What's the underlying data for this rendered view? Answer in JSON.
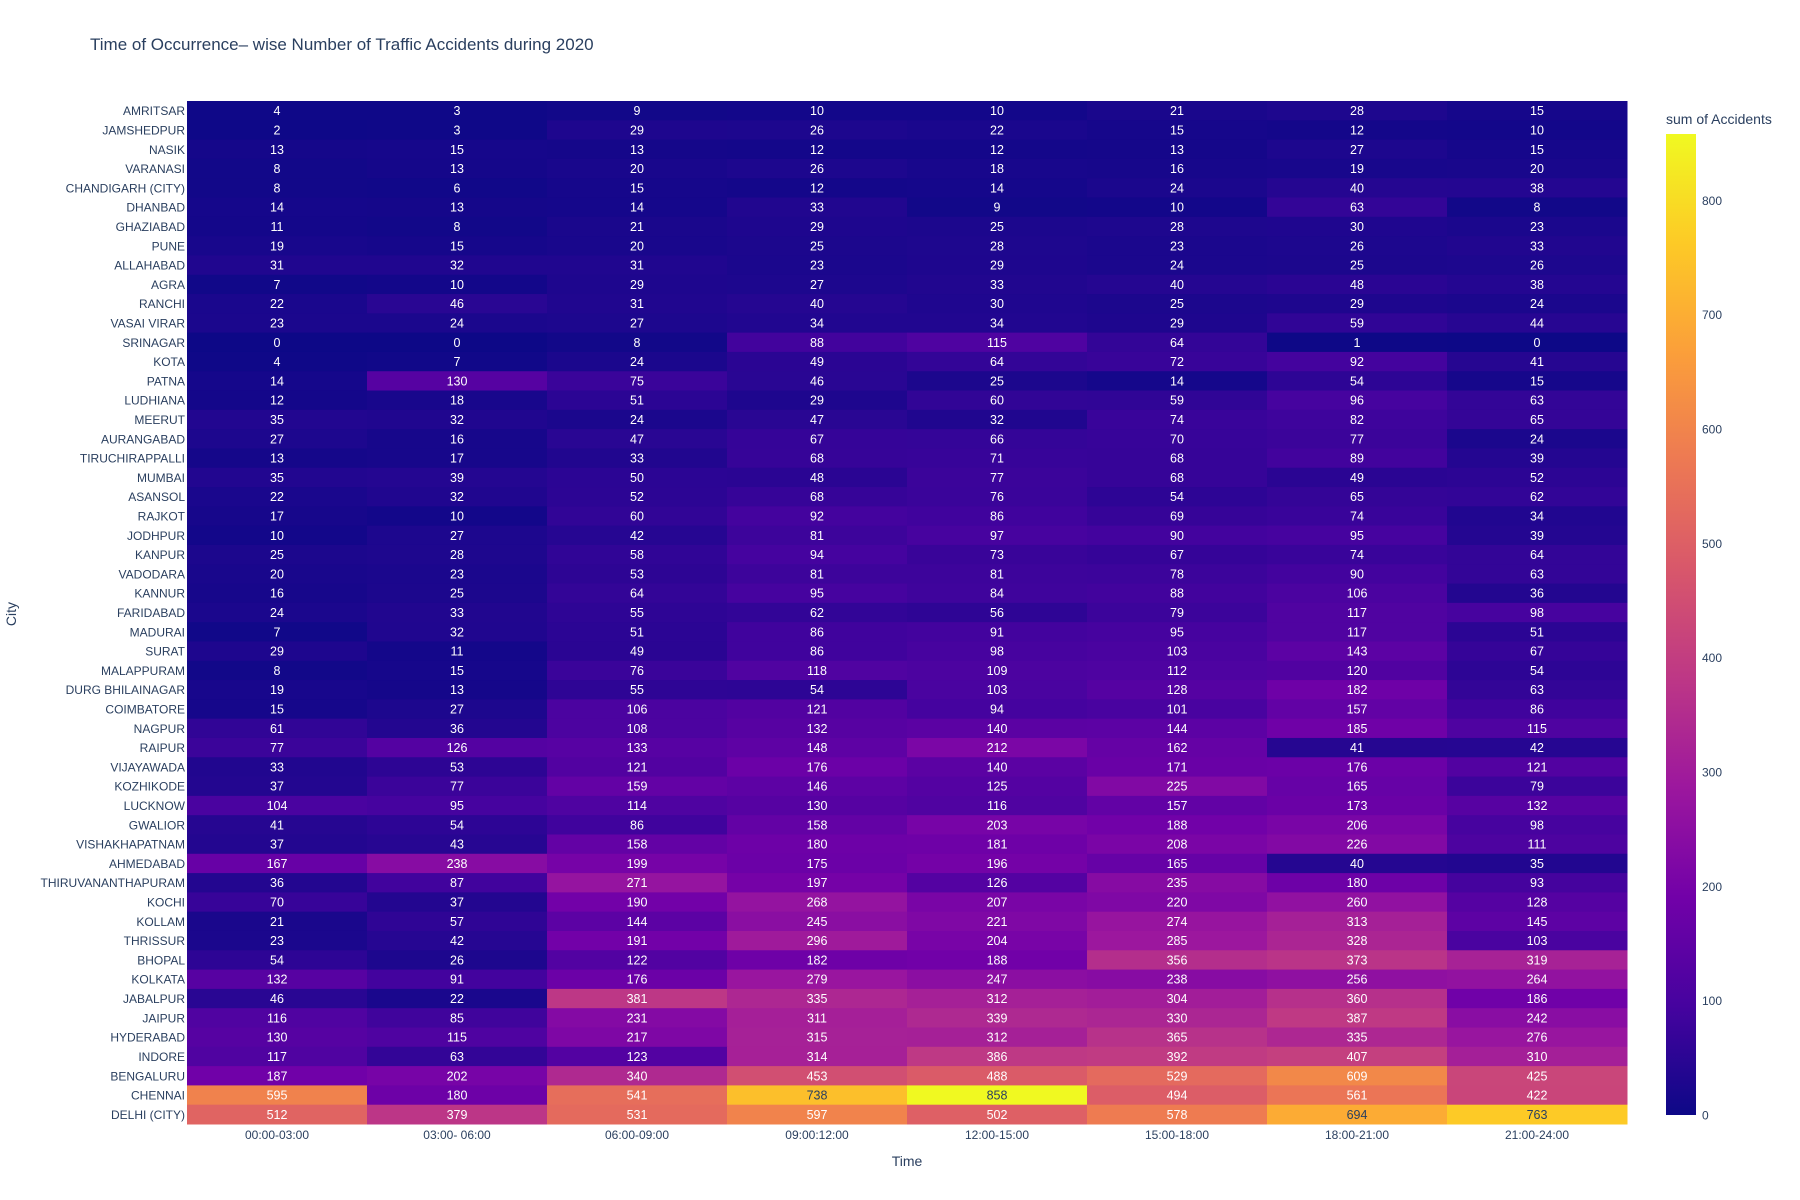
{
  "chart_data": {
    "type": "heatmap",
    "title": "Time of Occurrence– wise Number of Traffic Accidents during 2020",
    "xlabel": "Time",
    "ylabel": "City",
    "colorbar_title": "sum of Accidents",
    "colorbar_range": [
      0,
      858
    ],
    "colorbar_ticks": [
      "0",
      "100",
      "200",
      "300",
      "400",
      "500",
      "600",
      "700",
      "800"
    ],
    "colorscale": [
      "#0d0887",
      "#46039f",
      "#7201a8",
      "#9c179e",
      "#bd3786",
      "#d8576b",
      "#ed7953",
      "#fb9f3a",
      "#fdca26",
      "#f0f921"
    ],
    "x": [
      "00:00-03:00",
      "03:00- 06:00",
      "06:00-09:00",
      "09:00:12:00",
      "12:00-15:00",
      "15:00-18:00",
      "18:00-21:00",
      "21:00-24:00"
    ],
    "y": [
      "AMRITSAR",
      "JAMSHEDPUR",
      "NASIK",
      "VARANASI",
      "CHANDIGARH (CITY)",
      "DHANBAD",
      "GHAZIABAD",
      "PUNE",
      "ALLAHABAD",
      "AGRA",
      "RANCHI",
      "VASAI VIRAR",
      "SRINAGAR",
      "KOTA",
      "PATNA",
      "LUDHIANA",
      "MEERUT",
      "AURANGABAD",
      "TIRUCHIRAPPALLI",
      "MUMBAI",
      "ASANSOL",
      "RAJKOT",
      "JODHPUR",
      "KANPUR",
      "VADODARA",
      "KANNUR",
      "FARIDABAD",
      "MADURAI",
      "SURAT",
      "MALAPPURAM",
      "DURG BHILAINAGAR",
      "COIMBATORE",
      "NAGPUR",
      "RAIPUR",
      "VIJAYAWADA",
      "KOZHIKODE",
      "LUCKNOW",
      "GWALIOR",
      "VISHAKHAPATNAM",
      "AHMEDABAD",
      "THIRUVANANTHAPURAM",
      "KOCHI",
      "KOLLAM",
      "THRISSUR",
      "BHOPAL",
      "KOLKATA",
      "JABALPUR",
      "JAIPUR",
      "HYDERABAD",
      "INDORE",
      "BENGALURU",
      "CHENNAI",
      "DELHI (CITY)"
    ],
    "z": [
      [
        4,
        3,
        9,
        10,
        10,
        21,
        28,
        15
      ],
      [
        2,
        3,
        29,
        26,
        22,
        15,
        12,
        10
      ],
      [
        13,
        15,
        13,
        12,
        12,
        13,
        27,
        15
      ],
      [
        8,
        13,
        20,
        26,
        18,
        16,
        19,
        20
      ],
      [
        8,
        6,
        15,
        12,
        14,
        24,
        40,
        38
      ],
      [
        14,
        13,
        14,
        33,
        9,
        10,
        63,
        8
      ],
      [
        11,
        8,
        21,
        29,
        25,
        28,
        30,
        23
      ],
      [
        19,
        15,
        20,
        25,
        28,
        23,
        26,
        33
      ],
      [
        31,
        32,
        31,
        23,
        29,
        24,
        25,
        26
      ],
      [
        7,
        10,
        29,
        27,
        33,
        40,
        48,
        38
      ],
      [
        22,
        46,
        31,
        40,
        30,
        25,
        29,
        24
      ],
      [
        23,
        24,
        27,
        34,
        34,
        29,
        59,
        44
      ],
      [
        0,
        0,
        8,
        88,
        115,
        64,
        1,
        0
      ],
      [
        4,
        7,
        24,
        49,
        64,
        72,
        92,
        41
      ],
      [
        14,
        130,
        75,
        46,
        25,
        14,
        54,
        15
      ],
      [
        12,
        18,
        51,
        29,
        60,
        59,
        96,
        63
      ],
      [
        35,
        32,
        24,
        47,
        32,
        74,
        82,
        65
      ],
      [
        27,
        16,
        47,
        67,
        66,
        70,
        77,
        24
      ],
      [
        13,
        17,
        33,
        68,
        71,
        68,
        89,
        39
      ],
      [
        35,
        39,
        50,
        48,
        77,
        68,
        49,
        52
      ],
      [
        22,
        32,
        52,
        68,
        76,
        54,
        65,
        62
      ],
      [
        17,
        10,
        60,
        92,
        86,
        69,
        74,
        34
      ],
      [
        10,
        27,
        42,
        81,
        97,
        90,
        95,
        39
      ],
      [
        25,
        28,
        58,
        94,
        73,
        67,
        74,
        64
      ],
      [
        20,
        23,
        53,
        81,
        81,
        78,
        90,
        63
      ],
      [
        16,
        25,
        64,
        95,
        84,
        88,
        106,
        36
      ],
      [
        24,
        33,
        55,
        62,
        56,
        79,
        117,
        98
      ],
      [
        7,
        32,
        51,
        86,
        91,
        95,
        117,
        51
      ],
      [
        29,
        11,
        49,
        86,
        98,
        103,
        143,
        67
      ],
      [
        8,
        15,
        76,
        118,
        109,
        112,
        120,
        54
      ],
      [
        19,
        13,
        55,
        54,
        103,
        128,
        182,
        63
      ],
      [
        15,
        27,
        106,
        121,
        94,
        101,
        157,
        86
      ],
      [
        61,
        36,
        108,
        132,
        140,
        144,
        185,
        115
      ],
      [
        77,
        126,
        133,
        148,
        212,
        162,
        41,
        42
      ],
      [
        33,
        53,
        121,
        176,
        140,
        171,
        176,
        121
      ],
      [
        37,
        77,
        159,
        146,
        125,
        225,
        165,
        79
      ],
      [
        104,
        95,
        114,
        130,
        116,
        157,
        173,
        132
      ],
      [
        41,
        54,
        86,
        158,
        203,
        188,
        206,
        98
      ],
      [
        37,
        43,
        158,
        180,
        181,
        208,
        226,
        111
      ],
      [
        167,
        238,
        199,
        175,
        196,
        165,
        40,
        35
      ],
      [
        36,
        87,
        271,
        197,
        126,
        235,
        180,
        93
      ],
      [
        70,
        37,
        190,
        268,
        207,
        220,
        260,
        128
      ],
      [
        21,
        57,
        144,
        245,
        221,
        274,
        313,
        145
      ],
      [
        23,
        42,
        191,
        296,
        204,
        285,
        328,
        103
      ],
      [
        54,
        26,
        122,
        182,
        188,
        356,
        373,
        319
      ],
      [
        132,
        91,
        176,
        279,
        247,
        238,
        256,
        264
      ],
      [
        46,
        22,
        381,
        335,
        312,
        304,
        360,
        186
      ],
      [
        116,
        85,
        231,
        311,
        339,
        330,
        387,
        242
      ],
      [
        130,
        115,
        217,
        315,
        312,
        365,
        335,
        276
      ],
      [
        117,
        63,
        123,
        314,
        386,
        392,
        407,
        310
      ],
      [
        187,
        202,
        340,
        453,
        488,
        529,
        609,
        425
      ],
      [
        595,
        180,
        541,
        738,
        858,
        494,
        561,
        422
      ],
      [
        512,
        379,
        531,
        597,
        502,
        578,
        694,
        763
      ]
    ]
  }
}
